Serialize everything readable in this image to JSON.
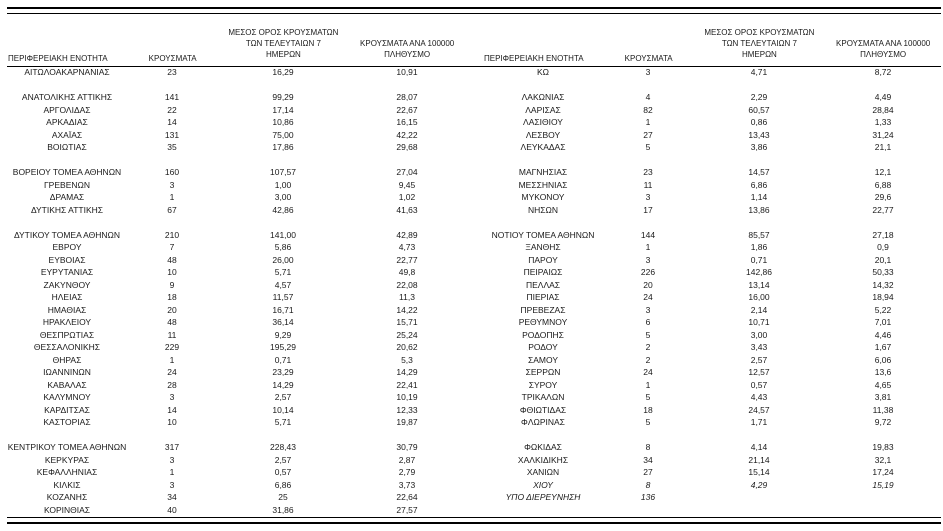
{
  "table": {
    "header": {
      "region": "ΠΕΡΙΦΕΡΕΙΑΚΗ ΕΝΟΤΗΤΑ",
      "cases": "ΚΡΟΥΣΜΑΤΑ",
      "avg7_line1": "ΜΕΣΟΣ ΟΡΟΣ ΚΡΟΥΣΜΑΤΩΝ",
      "avg7_line2": "ΤΩΝ ΤΕΛΕΥΤΑΙΩΝ 7",
      "avg7_line3": "ΗΜΕΡΩΝ",
      "per100k_line1": "ΚΡΟΥΣΜΑΤΑ ΑΝΑ 100000",
      "per100k_line2": "ΠΛΗΘΥΣΜΟ"
    },
    "left_rows": [
      {
        "region": "ΑΙΤΩΛΟΑΚΑΡΝΑΝΙΑΣ",
        "cases": "23",
        "avg7": "16,29",
        "per100k": "10,91"
      },
      {
        "blank": true
      },
      {
        "region": "ΑΝΑΤΟΛΙΚΗΣ ΑΤΤΙΚΗΣ",
        "cases": "141",
        "avg7": "99,29",
        "per100k": "28,07"
      },
      {
        "region": "ΑΡΓΟΛΙΔΑΣ",
        "cases": "22",
        "avg7": "17,14",
        "per100k": "22,67"
      },
      {
        "region": "ΑΡΚΑΔΙΑΣ",
        "cases": "14",
        "avg7": "10,86",
        "per100k": "16,15"
      },
      {
        "region": "ΑΧΑΪΑΣ",
        "cases": "131",
        "avg7": "75,00",
        "per100k": "42,22"
      },
      {
        "region": "ΒΟΙΩΤΙΑΣ",
        "cases": "35",
        "avg7": "17,86",
        "per100k": "29,68"
      },
      {
        "blank": true
      },
      {
        "region": "ΒΟΡΕΙΟΥ ΤΟΜΕΑ ΑΘΗΝΩΝ",
        "cases": "160",
        "avg7": "107,57",
        "per100k": "27,04"
      },
      {
        "region": "ΓΡΕΒΕΝΩΝ",
        "cases": "3",
        "avg7": "1,00",
        "per100k": "9,45"
      },
      {
        "region": "ΔΡΑΜΑΣ",
        "cases": "1",
        "avg7": "3,00",
        "per100k": "1,02"
      },
      {
        "region": "ΔΥΤΙΚΗΣ ΑΤΤΙΚΗΣ",
        "cases": "67",
        "avg7": "42,86",
        "per100k": "41,63"
      },
      {
        "blank": true
      },
      {
        "region": "ΔΥΤΙΚΟΥ ΤΟΜΕΑ ΑΘΗΝΩΝ",
        "cases": "210",
        "avg7": "141,00",
        "per100k": "42,89"
      },
      {
        "region": "ΕΒΡΟΥ",
        "cases": "7",
        "avg7": "5,86",
        "per100k": "4,73"
      },
      {
        "region": "ΕΥΒΟΙΑΣ",
        "cases": "48",
        "avg7": "26,00",
        "per100k": "22,77"
      },
      {
        "region": "ΕΥΡΥΤΑΝΙΑΣ",
        "cases": "10",
        "avg7": "5,71",
        "per100k": "49,8"
      },
      {
        "region": "ΖΑΚΥΝΘΟΥ",
        "cases": "9",
        "avg7": "4,57",
        "per100k": "22,08"
      },
      {
        "region": "ΗΛΕΙΑΣ",
        "cases": "18",
        "avg7": "11,57",
        "per100k": "11,3"
      },
      {
        "region": "ΗΜΑΘΙΑΣ",
        "cases": "20",
        "avg7": "16,71",
        "per100k": "14,22"
      },
      {
        "region": "ΗΡΑΚΛΕΙΟΥ",
        "cases": "48",
        "avg7": "36,14",
        "per100k": "15,71"
      },
      {
        "region": "ΘΕΣΠΡΩΤΙΑΣ",
        "cases": "11",
        "avg7": "9,29",
        "per100k": "25,24"
      },
      {
        "region": "ΘΕΣΣΑΛΟΝΙΚΗΣ",
        "cases": "229",
        "avg7": "195,29",
        "per100k": "20,62"
      },
      {
        "region": "ΘΗΡΑΣ",
        "cases": "1",
        "avg7": "0,71",
        "per100k": "5,3"
      },
      {
        "region": "ΙΩΑΝΝΙΝΩΝ",
        "cases": "24",
        "avg7": "23,29",
        "per100k": "14,29"
      },
      {
        "region": "ΚΑΒΑΛΑΣ",
        "cases": "28",
        "avg7": "14,29",
        "per100k": "22,41"
      },
      {
        "region": "ΚΑΛΥΜΝΟΥ",
        "cases": "3",
        "avg7": "2,57",
        "per100k": "10,19"
      },
      {
        "region": "ΚΑΡΔΙΤΣΑΣ",
        "cases": "14",
        "avg7": "10,14",
        "per100k": "12,33"
      },
      {
        "region": "ΚΑΣΤΟΡΙΑΣ",
        "cases": "10",
        "avg7": "5,71",
        "per100k": "19,87"
      },
      {
        "blank": true
      },
      {
        "region": "ΚΕΝΤΡΙΚΟΥ ΤΟΜΕΑ ΑΘΗΝΩΝ",
        "cases": "317",
        "avg7": "228,43",
        "per100k": "30,79"
      },
      {
        "region": "ΚΕΡΚΥΡΑΣ",
        "cases": "3",
        "avg7": "2,57",
        "per100k": "2,87"
      },
      {
        "region": "ΚΕΦΑΛΛΗΝΙΑΣ",
        "cases": "1",
        "avg7": "0,57",
        "per100k": "2,79"
      },
      {
        "region": "ΚΙΛΚΙΣ",
        "cases": "3",
        "avg7": "6,86",
        "per100k": "3,73"
      },
      {
        "region": "ΚΟΖΑΝΗΣ",
        "cases": "34",
        "avg7": "25",
        "per100k": "22,64"
      },
      {
        "region": "ΚΟΡΙΝΘΙΑΣ",
        "cases": "40",
        "avg7": "31,86",
        "per100k": "27,57"
      }
    ],
    "right_rows": [
      {
        "region": "ΚΩ",
        "cases": "3",
        "avg7": "4,71",
        "per100k": "8,72"
      },
      {
        "blank": true
      },
      {
        "region": "ΛΑΚΩΝΙΑΣ",
        "cases": "4",
        "avg7": "2,29",
        "per100k": "4,49"
      },
      {
        "region": "ΛΑΡΙΣΑΣ",
        "cases": "82",
        "avg7": "60,57",
        "per100k": "28,84"
      },
      {
        "region": "ΛΑΣΙΘΙΟΥ",
        "cases": "1",
        "avg7": "0,86",
        "per100k": "1,33"
      },
      {
        "region": "ΛΕΣΒΟΥ",
        "cases": "27",
        "avg7": "13,43",
        "per100k": "31,24"
      },
      {
        "region": "ΛΕΥΚΑΔΑΣ",
        "cases": "5",
        "avg7": "3,86",
        "per100k": "21,1"
      },
      {
        "blank": true
      },
      {
        "region": "ΜΑΓΝΗΣΙΑΣ",
        "cases": "23",
        "avg7": "14,57",
        "per100k": "12,1"
      },
      {
        "region": "ΜΕΣΣΗΝΙΑΣ",
        "cases": "11",
        "avg7": "6,86",
        "per100k": "6,88"
      },
      {
        "region": "ΜΥΚΟΝΟΥ",
        "cases": "3",
        "avg7": "1,14",
        "per100k": "29,6"
      },
      {
        "region": "ΝΗΣΩΝ",
        "cases": "17",
        "avg7": "13,86",
        "per100k": "22,77"
      },
      {
        "blank": true
      },
      {
        "region": "ΝΟΤΙΟΥ ΤΟΜΕΑ ΑΘΗΝΩΝ",
        "cases": "144",
        "avg7": "85,57",
        "per100k": "27,18"
      },
      {
        "region": "ΞΑΝΘΗΣ",
        "cases": "1",
        "avg7": "1,86",
        "per100k": "0,9"
      },
      {
        "region": "ΠΑΡΟΥ",
        "cases": "3",
        "avg7": "0,71",
        "per100k": "20,1"
      },
      {
        "region": "ΠΕΙΡΑΙΩΣ",
        "cases": "226",
        "avg7": "142,86",
        "per100k": "50,33"
      },
      {
        "region": "ΠΕΛΛΑΣ",
        "cases": "20",
        "avg7": "13,14",
        "per100k": "14,32"
      },
      {
        "region": "ΠΙΕΡΙΑΣ",
        "cases": "24",
        "avg7": "16,00",
        "per100k": "18,94"
      },
      {
        "region": "ΠΡΕΒΕΖΑΣ",
        "cases": "3",
        "avg7": "2,14",
        "per100k": "5,22"
      },
      {
        "region": "ΡΕΘΥΜΝΟΥ",
        "cases": "6",
        "avg7": "10,71",
        "per100k": "7,01"
      },
      {
        "region": "ΡΟΔΟΠΗΣ",
        "cases": "5",
        "avg7": "3,00",
        "per100k": "4,46"
      },
      {
        "region": "ΡΟΔΟΥ",
        "cases": "2",
        "avg7": "3,43",
        "per100k": "1,67"
      },
      {
        "region": "ΣΑΜΟΥ",
        "cases": "2",
        "avg7": "2,57",
        "per100k": "6,06"
      },
      {
        "region": "ΣΕΡΡΩΝ",
        "cases": "24",
        "avg7": "12,57",
        "per100k": "13,6"
      },
      {
        "region": "ΣΥΡΟΥ",
        "cases": "1",
        "avg7": "0,57",
        "per100k": "4,65"
      },
      {
        "region": "ΤΡΙΚΑΛΩΝ",
        "cases": "5",
        "avg7": "4,43",
        "per100k": "3,81"
      },
      {
        "region": "ΦΘΙΩΤΙΔΑΣ",
        "cases": "18",
        "avg7": "24,57",
        "per100k": "11,38"
      },
      {
        "region": "ΦΛΩΡΙΝΑΣ",
        "cases": "5",
        "avg7": "1,71",
        "per100k": "9,72"
      },
      {
        "blank": true
      },
      {
        "region": "ΦΩΚΙΔΑΣ",
        "cases": "8",
        "avg7": "4,14",
        "per100k": "19,83"
      },
      {
        "region": "ΧΑΛΚΙΔΙΚΗΣ",
        "cases": "34",
        "avg7": "21,14",
        "per100k": "32,1"
      },
      {
        "region": "ΧΑΝΙΩΝ",
        "cases": "27",
        "avg7": "15,14",
        "per100k": "17,24"
      },
      {
        "region": "ΧΙΟΥ",
        "cases": "8",
        "avg7": "4,29",
        "per100k": "15,19",
        "italic": true
      },
      {
        "region": "ΥΠΟ ΔΙΕΡΕΥΝΗΣΗ",
        "cases": "136",
        "avg7": "",
        "per100k": "",
        "italic": true
      },
      {
        "blank": true
      }
    ]
  }
}
